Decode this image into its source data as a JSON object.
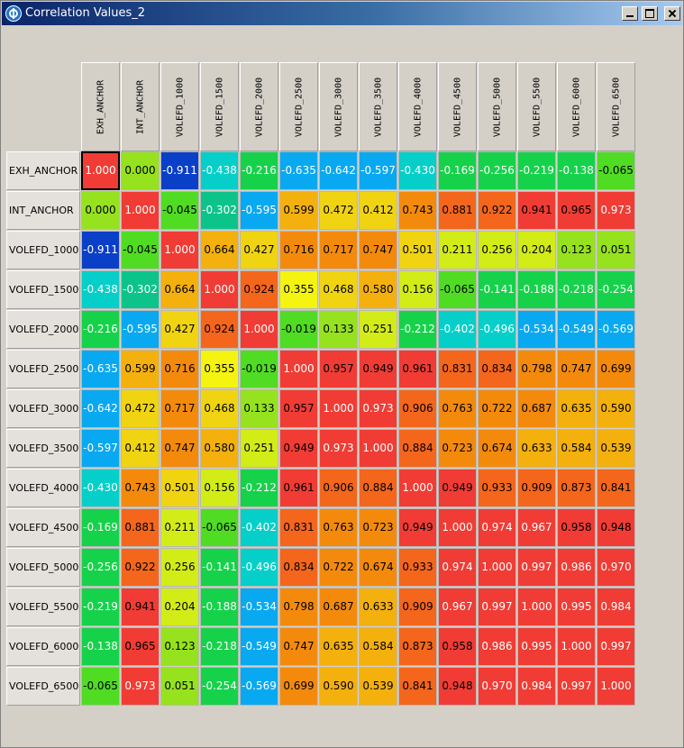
{
  "window": {
    "title": "Correlation Values_2"
  },
  "columns": [
    "EXH_ANCHOR",
    "INT_ANCHOR",
    "VOLEFD_1000",
    "VOLEFD_1500",
    "VOLEFD_2000",
    "VOLEFD_2500",
    "VOLEFD_3000",
    "VOLEFD_3500",
    "VOLEFD_4000",
    "VOLEFD_4500",
    "VOLEFD_5000",
    "VOLEFD_5500",
    "VOLEFD_6000",
    "VOLEFD_6500"
  ],
  "rows": [
    "EXH_ANCHOR",
    "INT_ANCHOR",
    "VOLEFD_1000",
    "VOLEFD_1500",
    "VOLEFD_2000",
    "VOLEFD_2500",
    "VOLEFD_3000",
    "VOLEFD_3500",
    "VOLEFD_4000",
    "VOLEFD_4500",
    "VOLEFD_5000",
    "VOLEFD_5500",
    "VOLEFD_6000",
    "VOLEFD_6500"
  ],
  "values": [
    [
      "1.000",
      "0.000",
      "-0.911",
      "-0.438",
      "-0.216",
      "-0.635",
      "-0.642",
      "-0.597",
      "-0.430",
      "-0.169",
      "-0.256",
      "-0.219",
      "-0.138",
      "-0.065"
    ],
    [
      "0.000",
      "1.000",
      "-0.045",
      "-0.302",
      "-0.595",
      "0.599",
      "0.472",
      "0.412",
      "0.743",
      "0.881",
      "0.922",
      "0.941",
      "0.965",
      "0.973"
    ],
    [
      "-0.911",
      "-0.045",
      "1.000",
      "0.664",
      "0.427",
      "0.716",
      "0.717",
      "0.747",
      "0.501",
      "0.211",
      "0.256",
      "0.204",
      "0.123",
      "0.051"
    ],
    [
      "-0.438",
      "-0.302",
      "0.664",
      "1.000",
      "0.924",
      "0.355",
      "0.468",
      "0.580",
      "0.156",
      "-0.065",
      "-0.141",
      "-0.188",
      "-0.218",
      "-0.254"
    ],
    [
      "-0.216",
      "-0.595",
      "0.427",
      "0.924",
      "1.000",
      "-0.019",
      "0.133",
      "0.251",
      "-0.212",
      "-0.402",
      "-0.496",
      "-0.534",
      "-0.549",
      "-0.569"
    ],
    [
      "-0.635",
      "0.599",
      "0.716",
      "0.355",
      "-0.019",
      "1.000",
      "0.957",
      "0.949",
      "0.961",
      "0.831",
      "0.834",
      "0.798",
      "0.747",
      "0.699"
    ],
    [
      "-0.642",
      "0.472",
      "0.717",
      "0.468",
      "0.133",
      "0.957",
      "1.000",
      "0.973",
      "0.906",
      "0.763",
      "0.722",
      "0.687",
      "0.635",
      "0.590"
    ],
    [
      "-0.597",
      "0.412",
      "0.747",
      "0.580",
      "0.251",
      "0.949",
      "0.973",
      "1.000",
      "0.884",
      "0.723",
      "0.674",
      "0.633",
      "0.584",
      "0.539"
    ],
    [
      "-0.430",
      "0.743",
      "0.501",
      "0.156",
      "-0.212",
      "0.961",
      "0.906",
      "0.884",
      "1.000",
      "0.949",
      "0.933",
      "0.909",
      "0.873",
      "0.841"
    ],
    [
      "-0.169",
      "0.881",
      "0.211",
      "-0.065",
      "-0.402",
      "0.831",
      "0.763",
      "0.723",
      "0.949",
      "1.000",
      "0.974",
      "0.967",
      "0.958",
      "0.948"
    ],
    [
      "-0.256",
      "0.922",
      "0.256",
      "-0.141",
      "-0.496",
      "0.834",
      "0.722",
      "0.674",
      "0.933",
      "0.974",
      "1.000",
      "0.997",
      "0.986",
      "0.970"
    ],
    [
      "-0.219",
      "0.941",
      "0.204",
      "-0.188",
      "-0.534",
      "0.798",
      "0.687",
      "0.633",
      "0.909",
      "0.967",
      "0.997",
      "1.000",
      "0.995",
      "0.984"
    ],
    [
      "-0.138",
      "0.965",
      "0.123",
      "-0.218",
      "-0.549",
      "0.747",
      "0.635",
      "0.584",
      "0.873",
      "0.958",
      "0.986",
      "0.995",
      "1.000",
      "0.997"
    ],
    [
      "-0.065",
      "0.973",
      "0.051",
      "-0.254",
      "-0.569",
      "0.699",
      "0.590",
      "0.539",
      "0.841",
      "0.948",
      "0.970",
      "0.984",
      "0.997",
      "1.000"
    ]
  ],
  "selected_cell": {
    "row": 0,
    "col": 0
  },
  "colors": {
    "titlebar_start": "#0a246a",
    "window_bg": "#d4d0c8",
    "scale": [
      "#052a8a",
      "#0a3fc8",
      "#1a73f0",
      "#08a9f0",
      "#05cfc8",
      "#0cc48a",
      "#16d24a",
      "#50dc22",
      "#96e21e",
      "#d2ec18",
      "#f4f410",
      "#f0d412",
      "#f4b00c",
      "#f48a0c",
      "#f4661c",
      "#f03c34"
    ]
  }
}
